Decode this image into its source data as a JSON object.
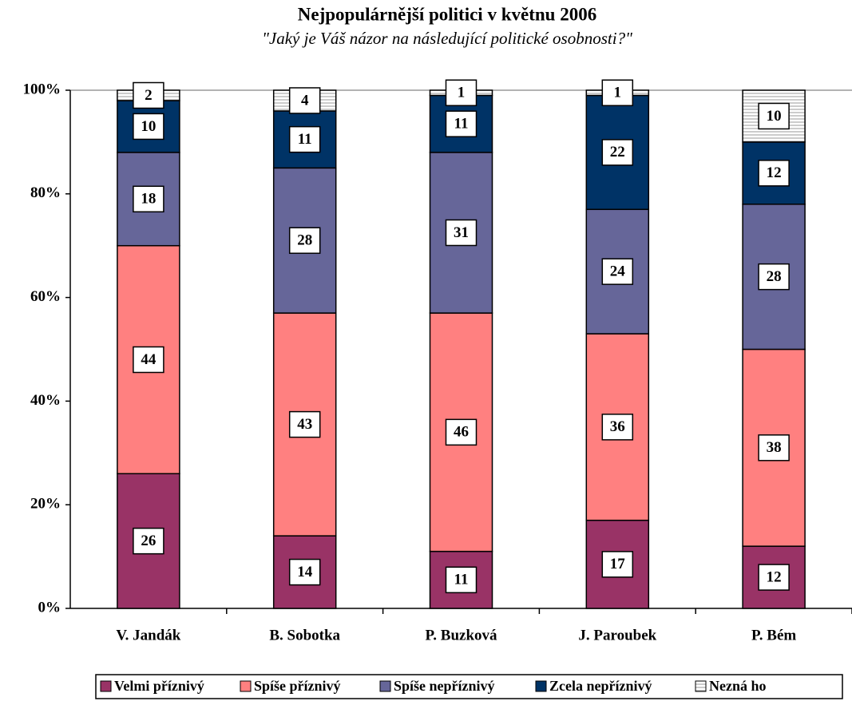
{
  "chart_data": {
    "type": "stacked_bar",
    "title": "Nejpopulárnější politici v květnu 2006",
    "subtitle": "\"Jaký je Váš názor na následující politické osobnosti?\"",
    "categories": [
      "V. Jandák",
      "B. Sobotka",
      "P. Buzková",
      "J. Paroubek",
      "P. Bém"
    ],
    "series": [
      {
        "name": "Velmi příznivý",
        "color": "#993366",
        "values": [
          26,
          14,
          11,
          17,
          12
        ]
      },
      {
        "name": "Spíše příznivý",
        "color": "#FF8080",
        "values": [
          44,
          43,
          46,
          36,
          38
        ]
      },
      {
        "name": "Spíše nepříznivý",
        "color": "#666699",
        "values": [
          18,
          28,
          31,
          24,
          28
        ]
      },
      {
        "name": "Zcela nepříznivý",
        "color": "#003366",
        "values": [
          10,
          11,
          11,
          22,
          12
        ]
      },
      {
        "name": "Nezná ho",
        "color": "#FFFFFF",
        "pattern": "horizontal-lines",
        "values": [
          2,
          4,
          1,
          1,
          10
        ]
      }
    ],
    "ylim": [
      0,
      100
    ],
    "yticks": [
      {
        "value": 0,
        "label": "0%"
      },
      {
        "value": 20,
        "label": "20%"
      },
      {
        "value": 40,
        "label": "40%"
      },
      {
        "value": 60,
        "label": "60%"
      },
      {
        "value": 80,
        "label": "80%"
      },
      {
        "value": 100,
        "label": "100%"
      }
    ],
    "legend": "bottom"
  }
}
